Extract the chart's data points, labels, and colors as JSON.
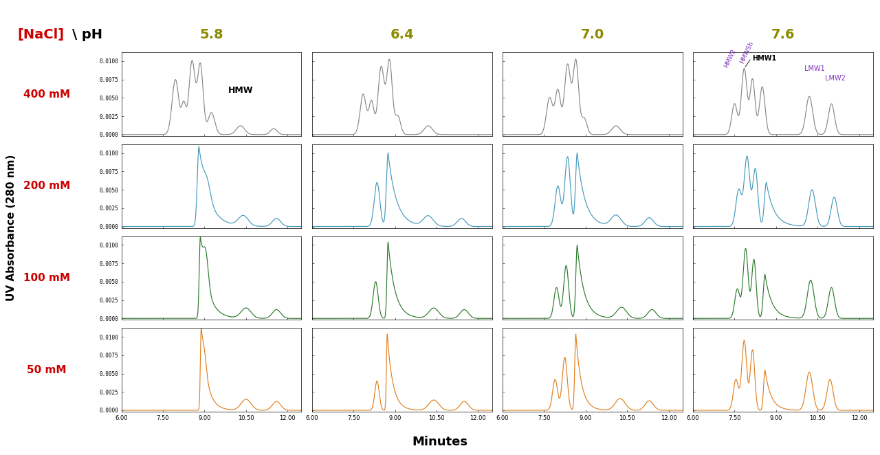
{
  "ph_values": [
    "5.8",
    "6.4",
    "7.0",
    "7.6"
  ],
  "nacl_values": [
    "400 mM",
    "200 mM",
    "100 mM",
    "50 mM"
  ],
  "ph_color": "#8B8B00",
  "nacl_color": "#cc0000",
  "row_colors": [
    "#888888",
    "#4499bb",
    "#2d7a2d",
    "#e08020"
  ],
  "xlim": [
    6.0,
    12.5
  ],
  "ylim": [
    -0.0002,
    0.0112
  ],
  "yticks": [
    0.0,
    0.0025,
    0.005,
    0.0075,
    0.01
  ],
  "xticks": [
    6.0,
    7.5,
    9.0,
    10.5,
    12.0
  ],
  "xtick_labels": [
    "6.00",
    "7.50",
    "9.00",
    "10.50",
    "12.00"
  ],
  "xlabel": "Minutes",
  "ylabel": "UV Absorbance (280 nm)",
  "annotation_hmw": "HMW",
  "annotation_hmw1": "HMW1",
  "annotation_hmw2": "HMW2",
  "annotation_hmwsh": "HMWSh",
  "annotation_lmw1": "LMW1",
  "annotation_lmw2": "LMW2",
  "annotation_color": "#7B2FBE"
}
